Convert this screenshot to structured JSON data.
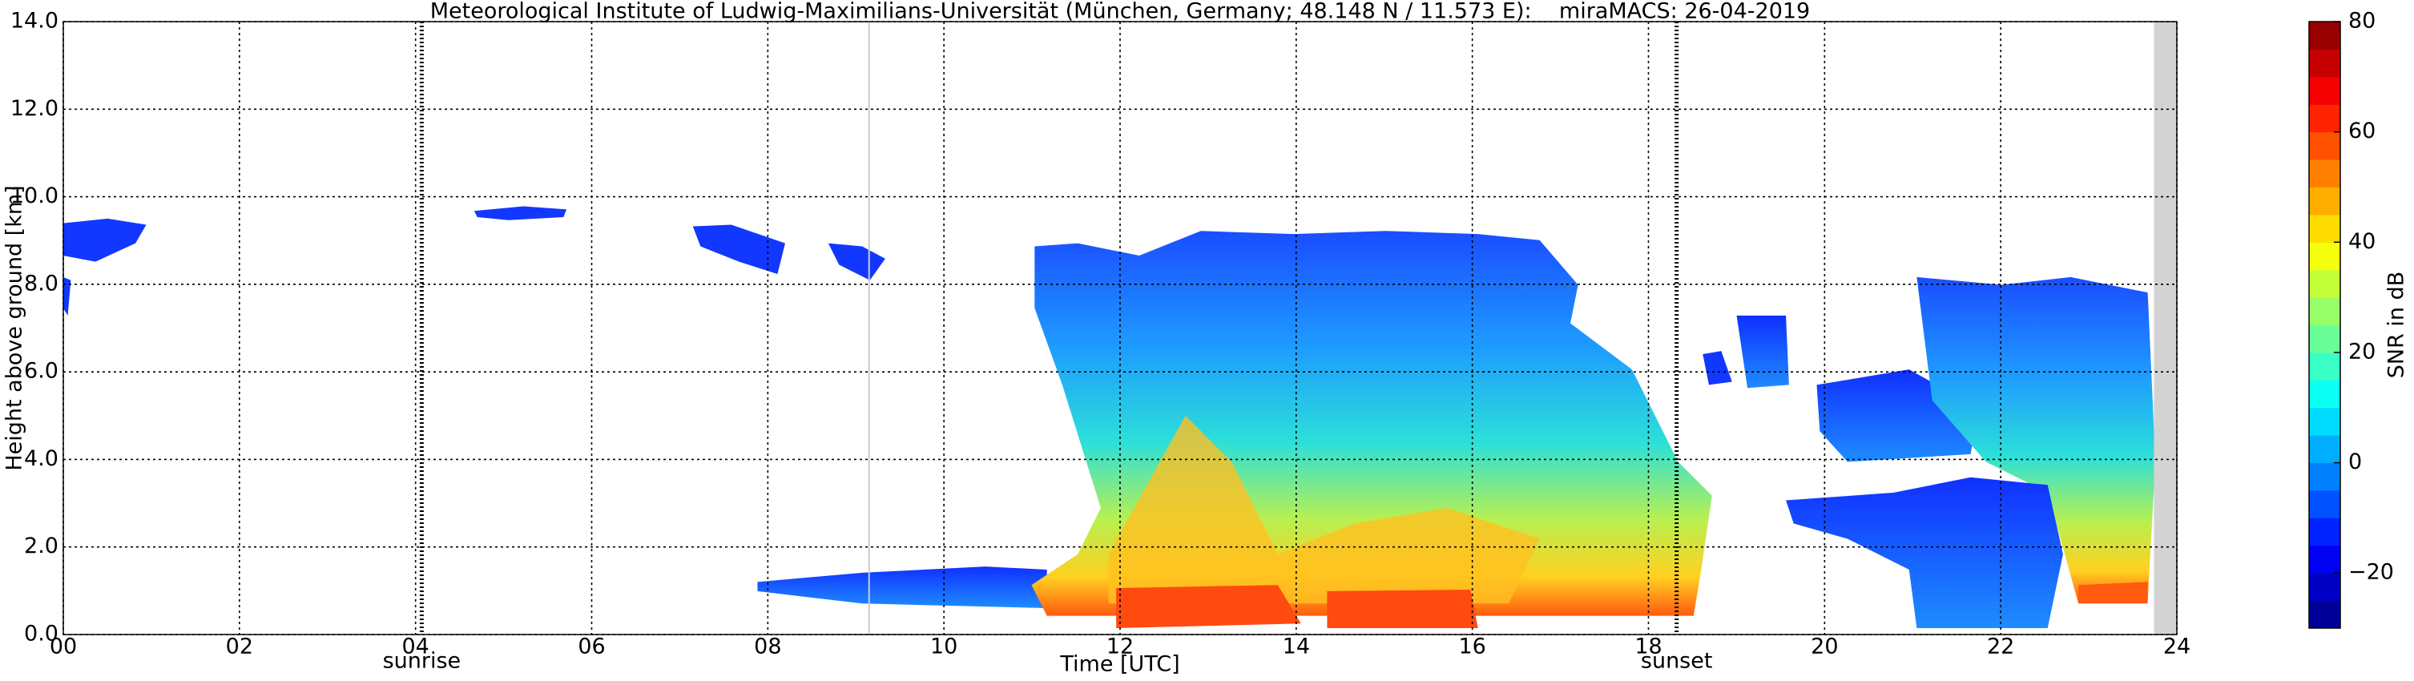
{
  "chart_data": {
    "type": "heatmap",
    "title": "Meteorological Institute of Ludwig-Maximilians-Universität (München, Germany; 48.148 N / 11.573 E):    miraMACS: 26-04-2019",
    "xlabel": "Time [UTC]",
    "ylabel": "Height above ground [km]",
    "xlim": [
      0,
      24
    ],
    "ylim": [
      0,
      14
    ],
    "xticks": [
      {
        "value": 0,
        "label": "00"
      },
      {
        "value": 2,
        "label": "02"
      },
      {
        "value": 4,
        "label": "04"
      },
      {
        "value": 6,
        "label": "06"
      },
      {
        "value": 8,
        "label": "08"
      },
      {
        "value": 10,
        "label": "10"
      },
      {
        "value": 12,
        "label": "12"
      },
      {
        "value": 14,
        "label": "14"
      },
      {
        "value": 16,
        "label": "16"
      },
      {
        "value": 18,
        "label": "18"
      },
      {
        "value": 20,
        "label": "20"
      },
      {
        "value": 22,
        "label": "22"
      },
      {
        "value": 24,
        "label": "24"
      }
    ],
    "yticks": [
      {
        "value": 0,
        "label": "0.0"
      },
      {
        "value": 2,
        "label": "2.0"
      },
      {
        "value": 4,
        "label": "4.0"
      },
      {
        "value": 6,
        "label": "6.0"
      },
      {
        "value": 8,
        "label": "8.0"
      },
      {
        "value": 10,
        "label": "10.0"
      },
      {
        "value": 12,
        "label": "12.0"
      },
      {
        "value": 14,
        "label": "14.0"
      }
    ],
    "grid": true,
    "annotations": [
      {
        "text": "sunrise",
        "x": 4.07
      },
      {
        "text": "sunset",
        "x": 18.32
      }
    ],
    "no_data_span": [
      23.74,
      24
    ],
    "colorbar": {
      "label": "SNR in dB",
      "lim": [
        -30,
        80
      ],
      "colormap": "jet",
      "ticks": [
        {
          "value": -20,
          "label": "−20"
        },
        0,
        20,
        40,
        60,
        80
      ]
    }
  }
}
